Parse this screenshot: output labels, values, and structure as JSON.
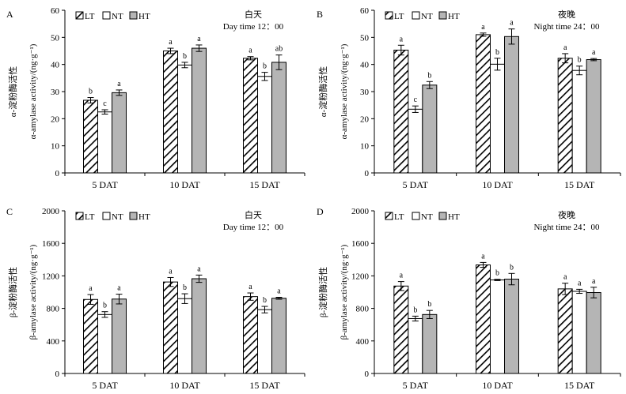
{
  "figure": {
    "legend": [
      "LT",
      "NT",
      "HT"
    ],
    "colors": {
      "LT": "#ffffff",
      "NT": "#ffffff",
      "HT": "#b5b5b5",
      "stroke": "#000000"
    }
  },
  "chart_data": [
    {
      "panel": "A",
      "type": "bar",
      "annotation_cn": "白天",
      "annotation_en": "Day time 12：00",
      "ylabel_cn": "α-淀粉酶活性",
      "ylabel_en": "α-amylase activity/(ng·g⁻¹)",
      "categories": [
        "5 DAT",
        "10 DAT",
        "15 DAT"
      ],
      "ylim": [
        0,
        60
      ],
      "yticks": [
        0,
        10,
        20,
        30,
        40,
        50,
        60
      ],
      "series": [
        {
          "name": "LT",
          "values": [
            26.8,
            45.0,
            42.3
          ],
          "errors": [
            1.0,
            1.0,
            0.6
          ],
          "letters": [
            "b",
            "a",
            "a"
          ]
        },
        {
          "name": "NT",
          "values": [
            22.5,
            39.8,
            35.6
          ],
          "errors": [
            0.8,
            1.0,
            1.5
          ],
          "letters": [
            "c",
            "b",
            "b"
          ]
        },
        {
          "name": "HT",
          "values": [
            29.6,
            46.0,
            40.8
          ],
          "errors": [
            1.0,
            1.2,
            2.7
          ],
          "letters": [
            "a",
            "a",
            "ab"
          ]
        }
      ]
    },
    {
      "panel": "B",
      "type": "bar",
      "annotation_cn": "夜晚",
      "annotation_en": "Night time 24：00",
      "ylabel_cn": "α-淀粉酶活性",
      "ylabel_en": "α-amylase activity/(ng·g⁻¹)",
      "categories": [
        "5 DAT",
        "10 DAT",
        "15 DAT"
      ],
      "ylim": [
        0,
        60
      ],
      "yticks": [
        0,
        10,
        20,
        30,
        40,
        50,
        60
      ],
      "series": [
        {
          "name": "LT",
          "values": [
            45.3,
            51.0,
            42.3
          ],
          "errors": [
            1.8,
            0.6,
            1.7
          ],
          "letters": [
            "a",
            "a",
            "a"
          ]
        },
        {
          "name": "NT",
          "values": [
            23.5,
            40.1,
            37.8
          ],
          "errors": [
            1.2,
            2.2,
            1.6
          ],
          "letters": [
            "c",
            "b",
            "b"
          ]
        },
        {
          "name": "HT",
          "values": [
            32.4,
            50.3,
            41.8
          ],
          "errors": [
            1.3,
            2.8,
            0.4
          ],
          "letters": [
            "b",
            "a",
            "a"
          ]
        }
      ]
    },
    {
      "panel": "C",
      "type": "bar",
      "annotation_cn": "白天",
      "annotation_en": "Day time 12：00",
      "ylabel_cn": "β-淀粉酶活性",
      "ylabel_en": "β-amylase activity/(ng·g⁻¹)",
      "categories": [
        "5 DAT",
        "10 DAT",
        "15 DAT"
      ],
      "ylim": [
        0,
        2000
      ],
      "yticks": [
        0,
        400,
        800,
        1200,
        1600,
        2000
      ],
      "series": [
        {
          "name": "LT",
          "values": [
            910,
            1125,
            945
          ],
          "errors": [
            60,
            55,
            45
          ],
          "letters": [
            "a",
            "a",
            "a"
          ]
        },
        {
          "name": "NT",
          "values": [
            725,
            920,
            785
          ],
          "errors": [
            35,
            60,
            40
          ],
          "letters": [
            "b",
            "b",
            "b"
          ]
        },
        {
          "name": "HT",
          "values": [
            915,
            1165,
            925
          ],
          "errors": [
            60,
            45,
            12
          ],
          "letters": [
            "a",
            "a",
            "a"
          ]
        }
      ]
    },
    {
      "panel": "D",
      "type": "bar",
      "annotation_cn": "夜晚",
      "annotation_en": "Night time 24：00",
      "ylabel_cn": "β-淀粉酶活性",
      "ylabel_en": "β-amylase activity/(ng·g⁻¹)",
      "categories": [
        "5 DAT",
        "10 DAT",
        "15 DAT"
      ],
      "ylim": [
        0,
        2000
      ],
      "yticks": [
        0,
        400,
        800,
        1200,
        1600,
        2000
      ],
      "series": [
        {
          "name": "LT",
          "values": [
            1075,
            1335,
            1040
          ],
          "errors": [
            55,
            30,
            70
          ],
          "letters": [
            "a",
            "a",
            "a"
          ]
        },
        {
          "name": "NT",
          "values": [
            675,
            1150,
            1010
          ],
          "errors": [
            30,
            8,
            25
          ],
          "letters": [
            "b",
            "b",
            "a"
          ]
        },
        {
          "name": "HT",
          "values": [
            725,
            1160,
            995
          ],
          "errors": [
            50,
            70,
            65
          ],
          "letters": [
            "b",
            "b",
            "a"
          ]
        }
      ]
    }
  ]
}
